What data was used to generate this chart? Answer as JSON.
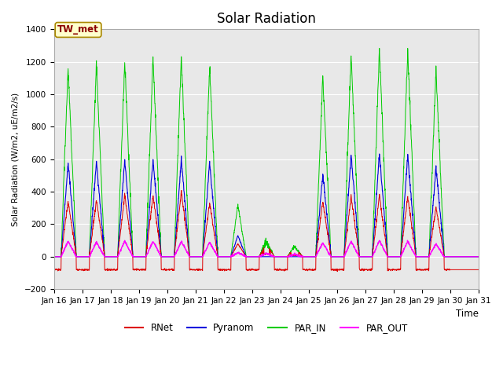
{
  "title": "Solar Radiation",
  "ylabel": "Solar Radiation (W/m2, uE/m2/s)",
  "xlabel": "Time",
  "xlim": [
    0,
    360
  ],
  "ylim": [
    -200,
    1400
  ],
  "yticks": [
    -200,
    0,
    200,
    400,
    600,
    800,
    1000,
    1200,
    1400
  ],
  "xtick_labels": [
    "Jan 16",
    "Jan 17",
    "Jan 18",
    "Jan 19",
    "Jan 20",
    "Jan 21",
    "Jan 22",
    "Jan 23",
    "Jan 24",
    "Jan 25",
    "Jan 26",
    "Jan 27",
    "Jan 28",
    "Jan 29",
    "Jan 30",
    "Jan 31"
  ],
  "xtick_positions": [
    0,
    24,
    48,
    72,
    96,
    120,
    144,
    168,
    192,
    216,
    240,
    264,
    288,
    312,
    336,
    360
  ],
  "bg_color": "#e8e8e8",
  "line_colors": {
    "RNet": "#dd0000",
    "Pyranom": "#0000dd",
    "PAR_IN": "#00cc00",
    "PAR_OUT": "#ff00ff"
  },
  "annotation_text": "TW_met",
  "annotation_bg": "#ffffcc",
  "annotation_border": "#aa8800",
  "figsize": [
    6.4,
    4.8
  ],
  "dpi": 100
}
